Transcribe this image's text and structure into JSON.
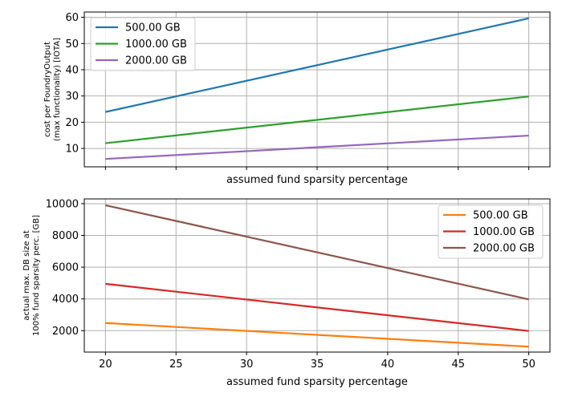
{
  "chart_data": [
    {
      "type": "line",
      "title": "",
      "xlabel": "assumed fund sparsity percentage",
      "ylabel_lines": [
        "cost per FoundryOutput",
        "(max functionality) [IOTA]"
      ],
      "xlim": [
        18.5,
        51.5
      ],
      "ylim": [
        3,
        62
      ],
      "xticks": [
        20,
        25,
        30,
        35,
        40,
        45,
        50
      ],
      "yticks": [
        10,
        20,
        30,
        40,
        50,
        60
      ],
      "show_xtick_labels": false,
      "grid": true,
      "legend_position": "top-left",
      "x": [
        20,
        50
      ],
      "series": [
        {
          "name": "500.00 GB",
          "color": "#1f77b4",
          "values": [
            23.9,
            59.6
          ]
        },
        {
          "name": "1000.00 GB",
          "color": "#2ca02c",
          "values": [
            12.0,
            29.8
          ]
        },
        {
          "name": "2000.00 GB",
          "color": "#9467bd",
          "values": [
            6.0,
            14.9
          ]
        }
      ]
    },
    {
      "type": "line",
      "title": "",
      "xlabel": "assumed fund sparsity percentage",
      "ylabel_lines": [
        "actual max. DB size at",
        "100% fund sparsity perc. [GB]"
      ],
      "xlim": [
        18.5,
        51.5
      ],
      "ylim": [
        650,
        10300
      ],
      "xticks": [
        20,
        25,
        30,
        35,
        40,
        45,
        50
      ],
      "yticks": [
        2000,
        4000,
        6000,
        8000,
        10000
      ],
      "show_xtick_labels": true,
      "grid": true,
      "legend_position": "top-right",
      "x": [
        20,
        50
      ],
      "series": [
        {
          "name": "500.00 GB",
          "color": "#ff7f0e",
          "values": [
            2480,
            990
          ]
        },
        {
          "name": "1000.00 GB",
          "color": "#d62728",
          "values": [
            4950,
            1980
          ]
        },
        {
          "name": "2000.00 GB",
          "color": "#8c564b",
          "values": [
            9900,
            3970
          ]
        }
      ]
    }
  ]
}
